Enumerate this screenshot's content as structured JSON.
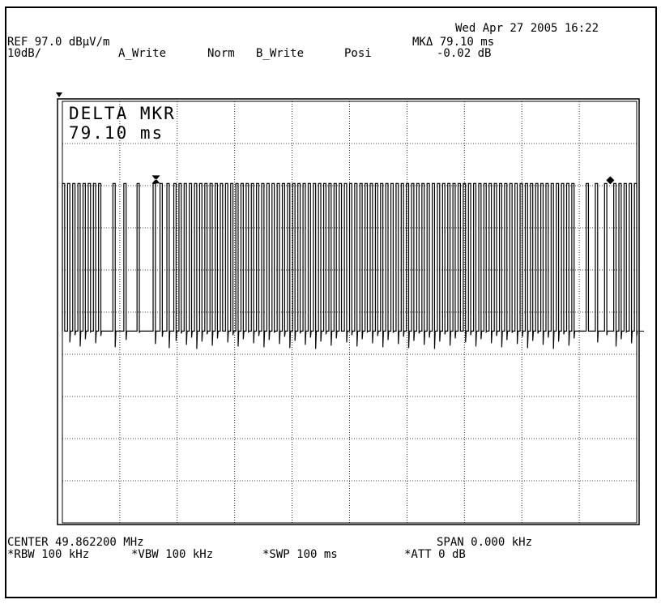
{
  "header": {
    "datetime": "Wed Apr 27 2005 16:22",
    "ref_level": "REF 97.0 dBµV/m",
    "scale": "10dB/",
    "trace_a": "A_Write",
    "detector_a": "Norm",
    "trace_b": "B_Write",
    "detector_b": "Posi",
    "marker_label": "MKΔ 79.10 ms",
    "marker_level": "-0.02 dB"
  },
  "annotation": {
    "line1": "DELTA MKR",
    "line2": "79.10 ms"
  },
  "footer": {
    "center": "CENTER 49.862200 MHz",
    "span": "SPAN 0.000 kHz",
    "rbw": "*RBW 100 kHz",
    "vbw": "*VBW 100 kHz",
    "swp": "*SWP 100 ms",
    "att": "*ATT 0 dB"
  },
  "chart_data": {
    "type": "line",
    "title": "",
    "xlabel": "",
    "ylabel": "",
    "x_unit": "ms",
    "y_unit": "dBµV/m",
    "xlim": [
      0,
      100
    ],
    "ylim": [
      -3,
      97
    ],
    "grid": true,
    "reference_level": 97.0,
    "scale_db_per_div": 10,
    "divisions": 10,
    "series": [
      {
        "high_level": 77.5,
        "low_level": 42.5,
        "pulses": [
          [
            0.0,
            0.4
          ],
          [
            0.9,
            1.3
          ],
          [
            1.8,
            2.2
          ],
          [
            2.7,
            3.1
          ],
          [
            3.6,
            4.0
          ],
          [
            4.5,
            4.9
          ],
          [
            5.4,
            5.8
          ],
          [
            6.3,
            6.7
          ],
          [
            8.8,
            9.2
          ],
          [
            10.7,
            11.1
          ],
          [
            13.0,
            13.4
          ],
          [
            15.8,
            16.2
          ],
          [
            17.0,
            17.4
          ],
          [
            18.2,
            18.6
          ],
          [
            19.4,
            19.8
          ],
          [
            20.3,
            20.7
          ],
          [
            21.2,
            21.6
          ],
          [
            22.1,
            22.5
          ],
          [
            23.0,
            23.4
          ],
          [
            23.9,
            24.3
          ],
          [
            24.8,
            25.2
          ],
          [
            25.7,
            26.1
          ],
          [
            26.6,
            27.0
          ],
          [
            27.5,
            27.9
          ],
          [
            28.4,
            28.8
          ],
          [
            29.3,
            29.7
          ],
          [
            30.2,
            30.6
          ],
          [
            31.1,
            31.5
          ],
          [
            32.0,
            32.4
          ],
          [
            32.9,
            33.3
          ],
          [
            33.8,
            34.2
          ],
          [
            34.7,
            35.1
          ],
          [
            35.6,
            36.0
          ],
          [
            36.5,
            36.9
          ],
          [
            37.4,
            37.8
          ],
          [
            38.3,
            38.7
          ],
          [
            39.2,
            39.6
          ],
          [
            40.1,
            40.5
          ],
          [
            41.0,
            41.4
          ],
          [
            41.9,
            42.3
          ],
          [
            42.8,
            43.2
          ],
          [
            43.7,
            44.1
          ],
          [
            44.6,
            45.0
          ],
          [
            45.5,
            45.9
          ],
          [
            46.4,
            46.8
          ],
          [
            47.3,
            47.7
          ],
          [
            48.2,
            48.6
          ],
          [
            49.1,
            49.5
          ],
          [
            50.0,
            50.4
          ],
          [
            50.9,
            51.3
          ],
          [
            51.8,
            52.2
          ],
          [
            52.7,
            53.1
          ],
          [
            53.6,
            54.0
          ],
          [
            54.5,
            54.9
          ],
          [
            55.4,
            55.8
          ],
          [
            56.3,
            56.7
          ],
          [
            57.2,
            57.6
          ],
          [
            58.1,
            58.5
          ],
          [
            59.0,
            59.4
          ],
          [
            59.9,
            60.3
          ],
          [
            60.8,
            61.2
          ],
          [
            61.7,
            62.1
          ],
          [
            62.6,
            63.0
          ],
          [
            63.5,
            63.9
          ],
          [
            64.4,
            64.8
          ],
          [
            65.3,
            65.7
          ],
          [
            66.2,
            66.6
          ],
          [
            67.1,
            67.5
          ],
          [
            68.0,
            68.4
          ],
          [
            68.9,
            69.3
          ],
          [
            69.8,
            70.2
          ],
          [
            70.7,
            71.1
          ],
          [
            71.6,
            72.0
          ],
          [
            72.5,
            72.9
          ],
          [
            73.4,
            73.8
          ],
          [
            74.3,
            74.7
          ],
          [
            75.2,
            75.6
          ],
          [
            76.1,
            76.5
          ],
          [
            77.0,
            77.4
          ],
          [
            77.9,
            78.3
          ],
          [
            78.8,
            79.2
          ],
          [
            79.7,
            80.1
          ],
          [
            80.6,
            81.0
          ],
          [
            81.5,
            81.9
          ],
          [
            82.4,
            82.8
          ],
          [
            83.3,
            83.7
          ],
          [
            84.2,
            84.6
          ],
          [
            85.1,
            85.5
          ],
          [
            86.0,
            86.4
          ],
          [
            86.9,
            87.3
          ],
          [
            87.8,
            88.2
          ],
          [
            88.7,
            89.1
          ],
          [
            91.2,
            91.6
          ],
          [
            92.8,
            93.2
          ],
          [
            94.4,
            94.8
          ],
          [
            96.0,
            96.4
          ],
          [
            96.9,
            97.3
          ],
          [
            97.8,
            98.2
          ],
          [
            98.7,
            99.1
          ],
          [
            99.6,
            100.0
          ]
        ]
      }
    ],
    "markers": [
      {
        "type": "delta",
        "x": 16.3,
        "y": 77.5
      },
      {
        "type": "reference",
        "x": 95.4,
        "y": 77.5
      }
    ]
  }
}
